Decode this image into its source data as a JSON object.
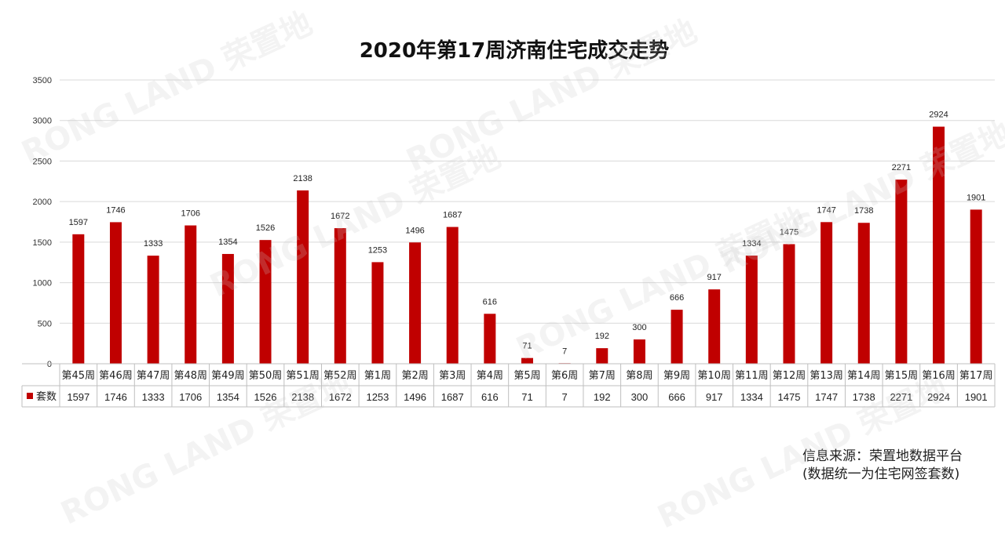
{
  "chart_data": {
    "type": "bar",
    "title": "2020年第17周济南住宅成交走势",
    "categories": [
      "第45周",
      "第46周",
      "第47周",
      "第48周",
      "第49周",
      "第50周",
      "第51周",
      "第52周",
      "第1周",
      "第2周",
      "第3周",
      "第4周",
      "第5周",
      "第6周",
      "第7周",
      "第8周",
      "第9周",
      "第10周",
      "第11周",
      "第12周",
      "第13周",
      "第14周",
      "第15周",
      "第16周",
      "第17周"
    ],
    "series": [
      {
        "name": "套数",
        "color": "#c00000",
        "values": [
          1597,
          1746,
          1333,
          1706,
          1354,
          1526,
          2138,
          1672,
          1253,
          1496,
          1687,
          616,
          71,
          7,
          192,
          300,
          666,
          917,
          1334,
          1475,
          1747,
          1738,
          2271,
          2924,
          1901
        ]
      }
    ],
    "ylim": [
      0,
      3500
    ],
    "yticks": [
      "0",
      "500",
      "1000",
      "1500",
      "2000",
      "2500",
      "3000",
      "3500"
    ],
    "grid": true,
    "legend": "data-table"
  },
  "source": {
    "line1": "信息来源：荣置地数据平台",
    "line2": "(数据统一为住宅网签套数)"
  },
  "watermark": "RONG LAND 荣置地"
}
